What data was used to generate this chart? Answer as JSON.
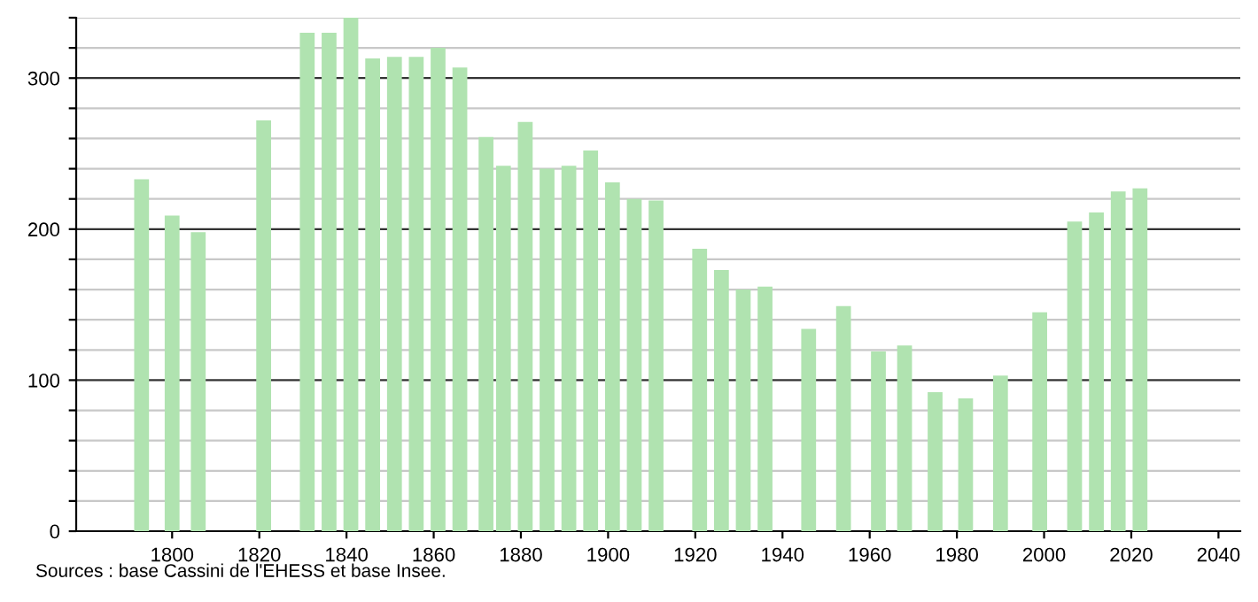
{
  "chart_data": {
    "type": "bar",
    "x": [
      1793,
      1800,
      1806,
      1821,
      1831,
      1836,
      1841,
      1846,
      1851,
      1856,
      1861,
      1866,
      1872,
      1876,
      1881,
      1886,
      1891,
      1896,
      1901,
      1906,
      1911,
      1921,
      1926,
      1931,
      1936,
      1946,
      1954,
      1962,
      1968,
      1975,
      1982,
      1990,
      1999,
      2007,
      2012,
      2017,
      2022
    ],
    "values": [
      233,
      209,
      198,
      272,
      330,
      330,
      340,
      313,
      314,
      314,
      320,
      307,
      261,
      242,
      271,
      240,
      242,
      252,
      231,
      220,
      219,
      187,
      173,
      160,
      162,
      134,
      149,
      119,
      123,
      92,
      88,
      103,
      145,
      205,
      211,
      225,
      227
    ],
    "color": "#b0e3b0",
    "xlim": [
      1778,
      2045
    ],
    "xticks": [
      1800,
      1820,
      1840,
      1860,
      1880,
      1900,
      1920,
      1940,
      1960,
      1980,
      2000,
      2020,
      2040
    ],
    "ylim": [
      0,
      340
    ],
    "yticks": [
      0,
      {
        "value": 20,
        "label": null
      },
      {
        "value": 40,
        "label": null
      },
      {
        "value": 60,
        "label": null
      },
      {
        "value": 80,
        "label": null
      },
      100,
      {
        "value": 120,
        "label": null
      },
      {
        "value": 140,
        "label": null
      },
      {
        "value": 160,
        "label": null
      },
      {
        "value": 180,
        "label": null
      },
      200,
      {
        "value": 220,
        "label": null
      },
      {
        "value": 240,
        "label": null
      },
      {
        "value": 260,
        "label": null
      },
      {
        "value": 280,
        "label": null
      },
      300,
      {
        "value": 320,
        "label": null
      },
      {
        "value": 340,
        "label": null
      }
    ],
    "grid": "y",
    "annotations": [
      "Sources : base Cassini de l'EHESS et base Insee."
    ]
  }
}
